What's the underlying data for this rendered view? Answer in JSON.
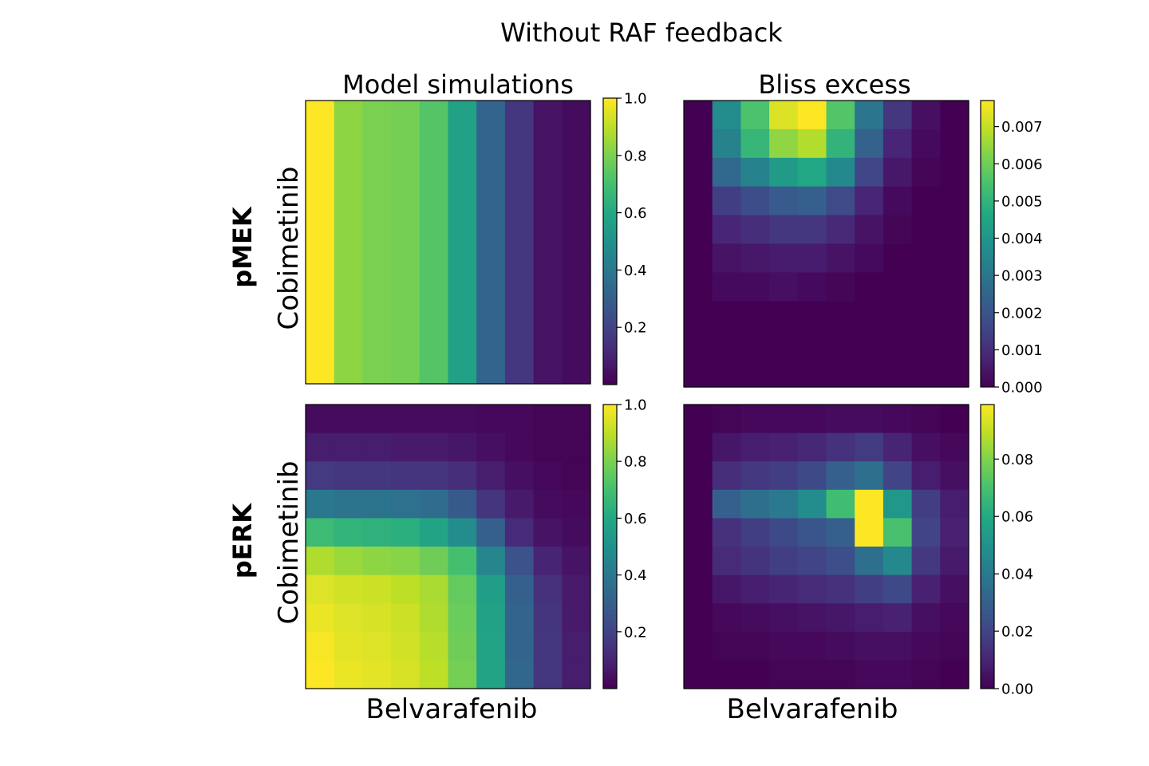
{
  "figure": {
    "title": "Without RAF feedback",
    "column_titles": [
      "Model simulations",
      "Bliss excess"
    ],
    "row_labels": [
      "pMEK",
      "pERK"
    ],
    "y_axis_label": "Cobimetinib",
    "x_axis_label": "Belvarafenib"
  },
  "colormap": "viridis",
  "chart_data": [
    {
      "type": "heatmap",
      "panel": "pMEK / Model simulations",
      "xlabel": "",
      "ylabel": "Cobimetinib",
      "rows": 10,
      "cols": 10,
      "vmin": 0.0,
      "vmax": 1.0,
      "colorbar_ticks": [
        0.2,
        0.4,
        0.6,
        0.8,
        1.0
      ],
      "colorbar_tick_labels": [
        "0.2",
        "0.4",
        "0.6",
        "0.8",
        "1.0"
      ],
      "values": [
        [
          1.0,
          0.83,
          0.8,
          0.79,
          0.73,
          0.57,
          0.32,
          0.16,
          0.05,
          0.03
        ],
        [
          1.0,
          0.83,
          0.8,
          0.79,
          0.73,
          0.57,
          0.32,
          0.16,
          0.05,
          0.03
        ],
        [
          1.0,
          0.83,
          0.8,
          0.79,
          0.73,
          0.57,
          0.32,
          0.16,
          0.05,
          0.03
        ],
        [
          1.0,
          0.83,
          0.8,
          0.79,
          0.73,
          0.57,
          0.32,
          0.16,
          0.05,
          0.03
        ],
        [
          1.0,
          0.83,
          0.8,
          0.79,
          0.73,
          0.57,
          0.32,
          0.16,
          0.05,
          0.03
        ],
        [
          1.0,
          0.83,
          0.8,
          0.79,
          0.73,
          0.57,
          0.32,
          0.16,
          0.05,
          0.03
        ],
        [
          1.0,
          0.83,
          0.8,
          0.79,
          0.73,
          0.57,
          0.32,
          0.16,
          0.05,
          0.03
        ],
        [
          1.0,
          0.83,
          0.8,
          0.79,
          0.73,
          0.57,
          0.32,
          0.16,
          0.05,
          0.03
        ],
        [
          1.0,
          0.83,
          0.8,
          0.79,
          0.73,
          0.57,
          0.32,
          0.16,
          0.05,
          0.03
        ],
        [
          1.0,
          0.83,
          0.8,
          0.79,
          0.73,
          0.57,
          0.32,
          0.16,
          0.05,
          0.03
        ]
      ]
    },
    {
      "type": "heatmap",
      "panel": "pMEK / Bliss excess",
      "xlabel": "",
      "ylabel": "",
      "rows": 10,
      "cols": 10,
      "vmin": 0.0,
      "vmax": 0.0077,
      "colorbar_ticks": [
        0.0,
        0.001,
        0.002,
        0.003,
        0.004,
        0.005,
        0.006,
        0.007
      ],
      "colorbar_tick_labels": [
        "0.000",
        "0.001",
        "0.002",
        "0.003",
        "0.004",
        "0.005",
        "0.006",
        "0.007"
      ],
      "values": [
        [
          0.0,
          0.0037,
          0.0055,
          0.0073,
          0.0077,
          0.0056,
          0.003,
          0.0012,
          0.0003,
          0.0
        ],
        [
          0.0,
          0.0034,
          0.0051,
          0.0064,
          0.0068,
          0.005,
          0.0024,
          0.0008,
          0.0002,
          0.0
        ],
        [
          0.0,
          0.0026,
          0.0034,
          0.0042,
          0.0046,
          0.0036,
          0.0016,
          0.0005,
          0.0001,
          0.0
        ],
        [
          0.0,
          0.0014,
          0.0018,
          0.0022,
          0.0023,
          0.0017,
          0.0008,
          0.0002,
          0.0,
          0.0
        ],
        [
          0.0,
          0.0008,
          0.001,
          0.0012,
          0.0012,
          0.0009,
          0.0004,
          0.0001,
          0.0,
          0.0
        ],
        [
          0.0,
          0.0004,
          0.0005,
          0.0006,
          0.0006,
          0.0004,
          0.0002,
          0.0,
          0.0,
          0.0
        ],
        [
          0.0,
          0.0002,
          0.0002,
          0.0003,
          0.0002,
          0.0001,
          0.0,
          0.0,
          0.0,
          0.0
        ],
        [
          0.0,
          0.0,
          0.0,
          0.0,
          0.0,
          0.0,
          0.0,
          0.0,
          0.0,
          0.0
        ],
        [
          0.0,
          0.0,
          0.0,
          0.0,
          0.0,
          0.0,
          0.0,
          0.0,
          0.0,
          0.0
        ],
        [
          0.0,
          0.0,
          0.0,
          0.0,
          0.0,
          0.0,
          0.0,
          0.0,
          0.0,
          0.0
        ]
      ]
    },
    {
      "type": "heatmap",
      "panel": "pERK / Model simulations",
      "xlabel": "Belvarafenib",
      "ylabel": "Cobimetinib",
      "rows": 10,
      "cols": 10,
      "vmin": 0.0,
      "vmax": 1.0,
      "colorbar_ticks": [
        0.2,
        0.4,
        0.6,
        0.8,
        1.0
      ],
      "colorbar_tick_labels": [
        "0.2",
        "0.4",
        "0.6",
        "0.8",
        "1.0"
      ],
      "values": [
        [
          0.03,
          0.03,
          0.03,
          0.03,
          0.03,
          0.03,
          0.02,
          0.02,
          0.01,
          0.01
        ],
        [
          0.08,
          0.08,
          0.08,
          0.07,
          0.07,
          0.06,
          0.04,
          0.02,
          0.01,
          0.01
        ],
        [
          0.17,
          0.16,
          0.16,
          0.15,
          0.15,
          0.13,
          0.08,
          0.04,
          0.02,
          0.01
        ],
        [
          0.4,
          0.38,
          0.38,
          0.37,
          0.35,
          0.28,
          0.15,
          0.07,
          0.03,
          0.02
        ],
        [
          0.68,
          0.65,
          0.64,
          0.63,
          0.58,
          0.48,
          0.3,
          0.12,
          0.05,
          0.03
        ],
        [
          0.88,
          0.85,
          0.83,
          0.82,
          0.78,
          0.7,
          0.45,
          0.25,
          0.1,
          0.05
        ],
        [
          0.95,
          0.93,
          0.92,
          0.9,
          0.87,
          0.76,
          0.55,
          0.3,
          0.14,
          0.07
        ],
        [
          0.97,
          0.95,
          0.94,
          0.92,
          0.88,
          0.77,
          0.57,
          0.32,
          0.15,
          0.07
        ],
        [
          0.99,
          0.96,
          0.95,
          0.93,
          0.89,
          0.78,
          0.58,
          0.32,
          0.16,
          0.08
        ],
        [
          1.0,
          0.97,
          0.96,
          0.94,
          0.9,
          0.79,
          0.58,
          0.33,
          0.16,
          0.08
        ]
      ]
    },
    {
      "type": "heatmap",
      "panel": "pERK / Bliss excess",
      "xlabel": "Belvarafenib",
      "ylabel": "",
      "rows": 10,
      "cols": 10,
      "vmin": 0.0,
      "vmax": 0.099,
      "colorbar_ticks": [
        0.0,
        0.02,
        0.04,
        0.06,
        0.08
      ],
      "colorbar_tick_labels": [
        "0.00",
        "0.02",
        "0.04",
        "0.06",
        "0.08"
      ],
      "values": [
        [
          0.0,
          0.001,
          0.002,
          0.002,
          0.002,
          0.003,
          0.003,
          0.002,
          0.001,
          0.0
        ],
        [
          0.0,
          0.006,
          0.008,
          0.009,
          0.011,
          0.014,
          0.017,
          0.01,
          0.004,
          0.002
        ],
        [
          0.0,
          0.013,
          0.016,
          0.018,
          0.022,
          0.03,
          0.036,
          0.02,
          0.008,
          0.004
        ],
        [
          0.0,
          0.03,
          0.036,
          0.04,
          0.048,
          0.068,
          0.099,
          0.052,
          0.018,
          0.008
        ],
        [
          0.0,
          0.014,
          0.018,
          0.022,
          0.026,
          0.03,
          0.099,
          0.07,
          0.02,
          0.009
        ],
        [
          0.0,
          0.012,
          0.015,
          0.018,
          0.02,
          0.024,
          0.036,
          0.046,
          0.016,
          0.007
        ],
        [
          0.0,
          0.006,
          0.008,
          0.01,
          0.012,
          0.014,
          0.018,
          0.022,
          0.009,
          0.004
        ],
        [
          0.0,
          0.002,
          0.003,
          0.004,
          0.005,
          0.006,
          0.008,
          0.009,
          0.004,
          0.002
        ],
        [
          0.0,
          0.001,
          0.001,
          0.002,
          0.002,
          0.003,
          0.004,
          0.004,
          0.002,
          0.001
        ],
        [
          0.0,
          0.0,
          0.0,
          0.001,
          0.001,
          0.001,
          0.002,
          0.002,
          0.001,
          0.0
        ]
      ]
    }
  ]
}
